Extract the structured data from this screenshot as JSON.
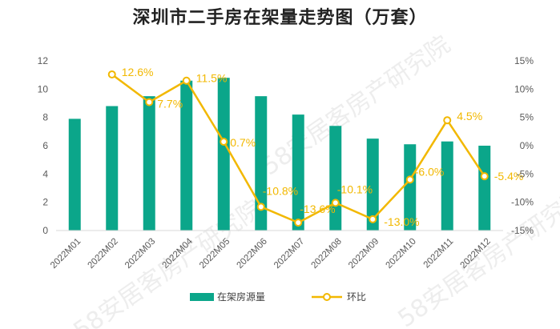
{
  "chart_data": {
    "type": "bar+line",
    "title": "深圳市二手房在架量走势图（万套）",
    "categories": [
      "2022M01",
      "2022M02",
      "2022M03",
      "2022M04",
      "2022M05",
      "2022M06",
      "2022M07",
      "2022M08",
      "2022M09",
      "2022M10",
      "2022M11",
      "2022M12"
    ],
    "series": [
      {
        "name": "在架房源量",
        "type": "bar",
        "axis": "left",
        "color": "#0BA68A",
        "values": [
          7.9,
          8.8,
          9.5,
          10.6,
          10.8,
          9.5,
          8.2,
          7.4,
          6.5,
          6.1,
          6.3,
          6.0
        ]
      },
      {
        "name": "环比",
        "type": "line",
        "axis": "right",
        "color": "#F2B800",
        "values": [
          null,
          12.6,
          7.7,
          11.5,
          0.7,
          -10.8,
          -13.6,
          -10.1,
          -13.0,
          -6.0,
          4.5,
          -5.4
        ],
        "labels": [
          "",
          "12.6%",
          "7.7%",
          "11.5%",
          "0.7%",
          "-10.8%",
          "-13.6%",
          "-10.1%",
          "-13.0%",
          "-6.0%",
          "4.5%",
          "-5.4%"
        ]
      }
    ],
    "left_axis": {
      "min": 0,
      "max": 12,
      "ticks": [
        "0",
        "2",
        "4",
        "6",
        "8",
        "10",
        "12"
      ]
    },
    "right_axis": {
      "min": -15,
      "max": 15,
      "ticks": [
        "-15%",
        "-10%",
        "-5%",
        "0%",
        "5%",
        "10%",
        "15%"
      ]
    },
    "legend": {
      "position": "bottom",
      "items": [
        "在架房源量",
        "环比"
      ]
    },
    "watermark": "58安居客房产研究院"
  }
}
